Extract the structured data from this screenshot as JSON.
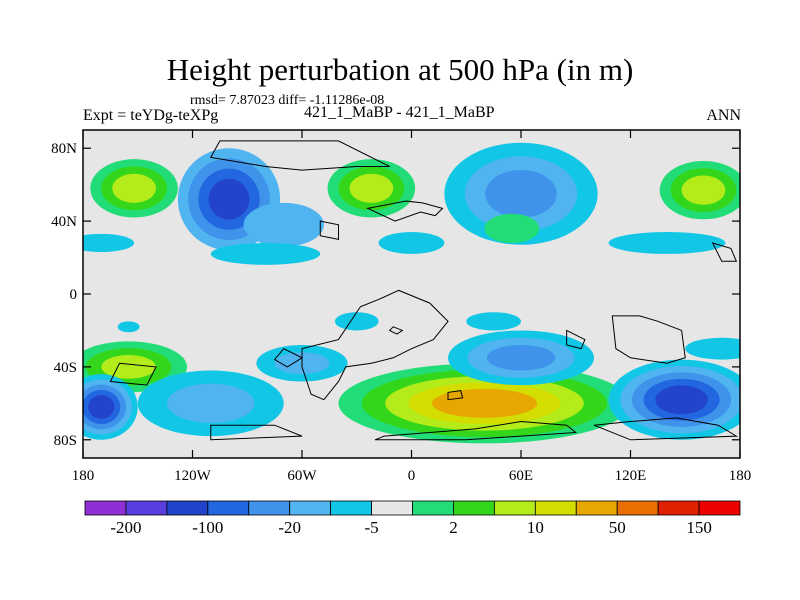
{
  "chart_data": {
    "type": "heatmap",
    "title": "Height perturbation at 500 hPa (in m)",
    "stats_label": "rmsd= 7.87023 diff= -1.11286e-08",
    "experiment_label": "Expt = teYDg-teXPg",
    "case_label": "421_1_MaBP - 421_1_MaBP",
    "season_label": "ANN",
    "x_axis": {
      "range": [
        -180,
        180
      ],
      "tick_values": [
        -180,
        -120,
        -60,
        0,
        60,
        120,
        180
      ],
      "tick_labels": [
        "180",
        "120W",
        "60W",
        "0",
        "60E",
        "120E",
        "180"
      ]
    },
    "y_axis": {
      "range": [
        -90,
        90
      ],
      "tick_values": [
        80,
        40,
        0,
        -40,
        -80
      ],
      "tick_labels": [
        "80N",
        "40N",
        "0",
        "40S",
        "80S"
      ]
    },
    "colorbar": {
      "colors": [
        "#8f2fd6",
        "#5a3fe0",
        "#2244cc",
        "#2266e0",
        "#3f93ea",
        "#4fb4f0",
        "#12c7e6",
        "#e6e6e6",
        "#22dd77",
        "#33d61a",
        "#b3ec1a",
        "#d4dd00",
        "#e6a800",
        "#ea6e00",
        "#e02200",
        "#ee0000"
      ],
      "labels": [
        "-200",
        "-100",
        "-20",
        "-5",
        "2",
        "10",
        "50",
        "150"
      ]
    },
    "blobs": [
      {
        "lon": -152,
        "lat": 58,
        "rx": 30,
        "ry": 20,
        "levels": [
          7,
          8,
          9,
          10
        ]
      },
      {
        "lon": -170,
        "lat": 28,
        "rx": 18,
        "ry": 5,
        "levels": [
          6
        ]
      },
      {
        "lon": -100,
        "lat": 52,
        "rx": 28,
        "ry": 28,
        "levels": [
          5,
          4,
          3,
          2
        ]
      },
      {
        "lon": -70,
        "lat": 38,
        "rx": 22,
        "ry": 12,
        "levels": [
          5
        ]
      },
      {
        "lon": -80,
        "lat": 22,
        "rx": 30,
        "ry": 6,
        "levels": [
          6
        ]
      },
      {
        "lon": -22,
        "lat": 58,
        "rx": 30,
        "ry": 20,
        "levels": [
          7,
          8,
          9,
          10
        ]
      },
      {
        "lon": 0,
        "lat": 28,
        "rx": 18,
        "ry": 6,
        "levels": [
          6
        ]
      },
      {
        "lon": 60,
        "lat": 55,
        "rx": 42,
        "ry": 28,
        "levels": [
          6,
          5,
          4
        ]
      },
      {
        "lon": 55,
        "lat": 36,
        "rx": 15,
        "ry": 8,
        "levels": [
          8
        ]
      },
      {
        "lon": 160,
        "lat": 57,
        "rx": 30,
        "ry": 20,
        "levels": [
          7,
          8,
          9,
          10
        ]
      },
      {
        "lon": 140,
        "lat": 28,
        "rx": 32,
        "ry": 6,
        "levels": [
          6
        ]
      },
      {
        "lon": -155,
        "lat": -40,
        "rx": 32,
        "ry": 14,
        "levels": [
          8,
          9,
          10
        ]
      },
      {
        "lon": -170,
        "lat": -62,
        "rx": 20,
        "ry": 18,
        "levels": [
          6,
          5,
          4,
          3,
          2
        ]
      },
      {
        "lon": -110,
        "lat": -60,
        "rx": 40,
        "ry": 18,
        "levels": [
          6,
          5
        ]
      },
      {
        "lon": -60,
        "lat": -38,
        "rx": 25,
        "ry": 10,
        "levels": [
          6,
          5
        ]
      },
      {
        "lon": 40,
        "lat": -60,
        "rx": 80,
        "ry": 22,
        "levels": [
          8,
          9,
          10,
          11,
          12
        ]
      },
      {
        "lon": 60,
        "lat": -35,
        "rx": 40,
        "ry": 15,
        "levels": [
          6,
          5,
          4
        ]
      },
      {
        "lon": -30,
        "lat": -15,
        "rx": 12,
        "ry": 5,
        "levels": [
          6
        ]
      },
      {
        "lon": 45,
        "lat": -15,
        "rx": 15,
        "ry": 5,
        "levels": [
          6
        ]
      },
      {
        "lon": -155,
        "lat": -18,
        "rx": 6,
        "ry": 3,
        "levels": [
          6
        ]
      },
      {
        "lon": 148,
        "lat": -58,
        "rx": 40,
        "ry": 22,
        "levels": [
          6,
          5,
          4,
          3,
          2
        ]
      },
      {
        "lon": 170,
        "lat": -30,
        "rx": 20,
        "ry": 6,
        "levels": [
          6
        ]
      }
    ],
    "coastlines": [
      [
        [
          -105,
          84
        ],
        [
          -40,
          84
        ],
        [
          -12,
          70
        ],
        [
          -30,
          70
        ],
        [
          -60,
          68
        ],
        [
          -80,
          70
        ],
        [
          -110,
          75
        ],
        [
          -105,
          84
        ]
      ],
      [
        [
          -24,
          47
        ],
        [
          -3,
          51
        ],
        [
          6,
          50
        ],
        [
          17,
          47
        ],
        [
          13,
          43
        ],
        [
          5,
          45
        ],
        [
          -9,
          40
        ],
        [
          -24,
          47
        ]
      ],
      [
        [
          -28,
          -7
        ],
        [
          -18,
          -3
        ],
        [
          -7,
          2
        ],
        [
          10,
          -5
        ],
        [
          20,
          -15
        ],
        [
          12,
          -25
        ],
        [
          0,
          -30
        ],
        [
          -10,
          -35
        ],
        [
          -22,
          -38
        ],
        [
          -36,
          -40
        ],
        [
          -40,
          -48
        ],
        [
          -48,
          -58
        ],
        [
          -55,
          -55
        ],
        [
          -60,
          -40
        ],
        [
          -60,
          -30
        ],
        [
          -40,
          -25
        ],
        [
          -28,
          -7
        ]
      ],
      [
        [
          110,
          -12
        ],
        [
          125,
          -12
        ],
        [
          135,
          -15
        ],
        [
          148,
          -20
        ],
        [
          150,
          -35
        ],
        [
          140,
          -38
        ],
        [
          120,
          -35
        ],
        [
          112,
          -30
        ],
        [
          110,
          -12
        ]
      ],
      [
        [
          120,
          -70
        ],
        [
          145,
          -68
        ],
        [
          168,
          -72
        ],
        [
          178,
          -78
        ],
        [
          120,
          -80
        ],
        [
          100,
          -72
        ],
        [
          120,
          -70
        ]
      ],
      [
        [
          -110,
          -72
        ],
        [
          -75,
          -72
        ],
        [
          -60,
          -78
        ],
        [
          -110,
          -80
        ],
        [
          -110,
          -72
        ]
      ],
      [
        [
          -15,
          -78
        ],
        [
          35,
          -74
        ],
        [
          60,
          -70
        ],
        [
          85,
          -72
        ],
        [
          90,
          -76
        ],
        [
          30,
          -80
        ],
        [
          -20,
          -80
        ],
        [
          -15,
          -78
        ]
      ],
      [
        [
          -165,
          -48
        ],
        [
          -145,
          -50
        ],
        [
          -140,
          -40
        ],
        [
          -160,
          -38
        ],
        [
          -165,
          -48
        ]
      ],
      [
        [
          20,
          -58
        ],
        [
          28,
          -57
        ],
        [
          27,
          -53
        ],
        [
          20,
          -54
        ],
        [
          20,
          -58
        ]
      ],
      [
        [
          -75,
          -36
        ],
        [
          -68,
          -40
        ],
        [
          -60,
          -35
        ],
        [
          -70,
          -30
        ],
        [
          -75,
          -36
        ]
      ],
      [
        [
          165,
          28
        ],
        [
          175,
          25
        ],
        [
          178,
          18
        ],
        [
          170,
          18
        ],
        [
          165,
          28
        ]
      ],
      [
        [
          -50,
          40
        ],
        [
          -40,
          38
        ],
        [
          -40,
          30
        ],
        [
          -50,
          32
        ],
        [
          -50,
          40
        ]
      ],
      [
        [
          -10,
          -18
        ],
        [
          -5,
          -20
        ],
        [
          -8,
          -22
        ],
        [
          -12,
          -20
        ],
        [
          -10,
          -18
        ]
      ],
      [
        [
          85,
          -20
        ],
        [
          95,
          -25
        ],
        [
          93,
          -30
        ],
        [
          85,
          -28
        ],
        [
          85,
          -20
        ]
      ]
    ]
  }
}
